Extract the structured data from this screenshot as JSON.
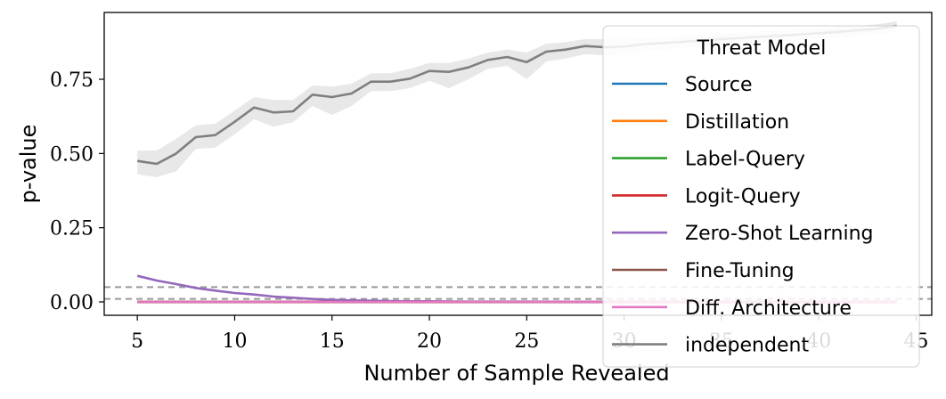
{
  "chart_data": {
    "type": "line",
    "xlabel": "Number of Sample Revealed",
    "ylabel": "p-value",
    "xlim": [
      3.3,
      45.8
    ],
    "ylim": [
      -0.045,
      0.975
    ],
    "xticks": [
      5,
      10,
      15,
      20,
      25,
      30,
      35,
      40,
      45
    ],
    "yticks": [
      0.0,
      0.25,
      0.5,
      0.75
    ],
    "ytick_labels": [
      "0.00",
      "0.25",
      "0.50",
      "0.75"
    ],
    "reference_lines": [
      0.05,
      0.01
    ],
    "reference_color": "#999999",
    "legend": {
      "title": "Threat Model",
      "placement": "right"
    },
    "series": [
      {
        "name": "Source",
        "color": "#1f77b4",
        "x": [
          5,
          44
        ],
        "values": [
          0.0,
          0.0
        ]
      },
      {
        "name": "Distillation",
        "color": "#ff7f0e",
        "x": [
          5,
          44
        ],
        "values": [
          0.0,
          0.0
        ]
      },
      {
        "name": "Label-Query",
        "color": "#2ca02c",
        "x": [
          5,
          44
        ],
        "values": [
          0.0,
          0.0
        ]
      },
      {
        "name": "Logit-Query",
        "color": "#d62728",
        "x": [
          5,
          44
        ],
        "values": [
          0.0,
          0.0
        ]
      },
      {
        "name": "Zero-Shot Learning",
        "color": "#9467bd",
        "x": [
          5,
          6,
          7,
          8,
          9,
          10,
          11,
          12,
          13,
          14,
          15,
          16,
          17,
          18,
          19,
          20,
          22,
          25,
          30,
          35,
          40,
          44
        ],
        "values": [
          0.088,
          0.072,
          0.06,
          0.047,
          0.038,
          0.03,
          0.025,
          0.018,
          0.014,
          0.01,
          0.007,
          0.005,
          0.004,
          0.003,
          0.002,
          0.002,
          0.001,
          0.001,
          0.0,
          0.0,
          0.0,
          0.0
        ]
      },
      {
        "name": "Fine-Tuning",
        "color": "#8c564b",
        "x": [
          5,
          44
        ],
        "values": [
          0.0,
          0.0
        ]
      },
      {
        "name": "Diff. Architecture",
        "color": "#e377c2",
        "x": [
          5,
          44
        ],
        "values": [
          0.0,
          0.0
        ]
      },
      {
        "name": "independent",
        "color": "#7f7f7f",
        "x": [
          5,
          6,
          7,
          8,
          9,
          10,
          11,
          12,
          13,
          14,
          15,
          16,
          17,
          18,
          19,
          20,
          21,
          22,
          23,
          24,
          25,
          26,
          27,
          28,
          29,
          30,
          31,
          32,
          33,
          34,
          35,
          36,
          37,
          38,
          39,
          40,
          41,
          42,
          43,
          44
        ],
        "values": [
          0.475,
          0.465,
          0.5,
          0.555,
          0.562,
          0.607,
          0.655,
          0.638,
          0.642,
          0.698,
          0.69,
          0.702,
          0.742,
          0.742,
          0.752,
          0.778,
          0.775,
          0.79,
          0.815,
          0.825,
          0.808,
          0.843,
          0.85,
          0.862,
          0.858,
          0.86,
          0.868,
          0.872,
          0.876,
          0.88,
          0.885,
          0.889,
          0.893,
          0.897,
          0.901,
          0.905,
          0.91,
          0.915,
          0.92,
          0.93
        ],
        "band_low": [
          0.43,
          0.42,
          0.44,
          0.515,
          0.52,
          0.565,
          0.615,
          0.59,
          0.605,
          0.66,
          0.63,
          0.66,
          0.71,
          0.71,
          0.72,
          0.745,
          0.72,
          0.75,
          0.785,
          0.795,
          0.75,
          0.81,
          0.82,
          0.835,
          0.83,
          0.835,
          0.845,
          0.85,
          0.855,
          0.86,
          0.865,
          0.87,
          0.875,
          0.878,
          0.882,
          0.887,
          0.892,
          0.897,
          0.902,
          0.91
        ],
        "band_high": [
          0.51,
          0.51,
          0.55,
          0.595,
          0.6,
          0.645,
          0.69,
          0.68,
          0.68,
          0.73,
          0.725,
          0.735,
          0.77,
          0.77,
          0.785,
          0.805,
          0.805,
          0.82,
          0.84,
          0.85,
          0.84,
          0.87,
          0.875,
          0.885,
          0.885,
          0.885,
          0.89,
          0.893,
          0.897,
          0.9,
          0.905,
          0.908,
          0.911,
          0.914,
          0.918,
          0.922,
          0.926,
          0.93,
          0.935,
          0.945
        ]
      }
    ]
  }
}
